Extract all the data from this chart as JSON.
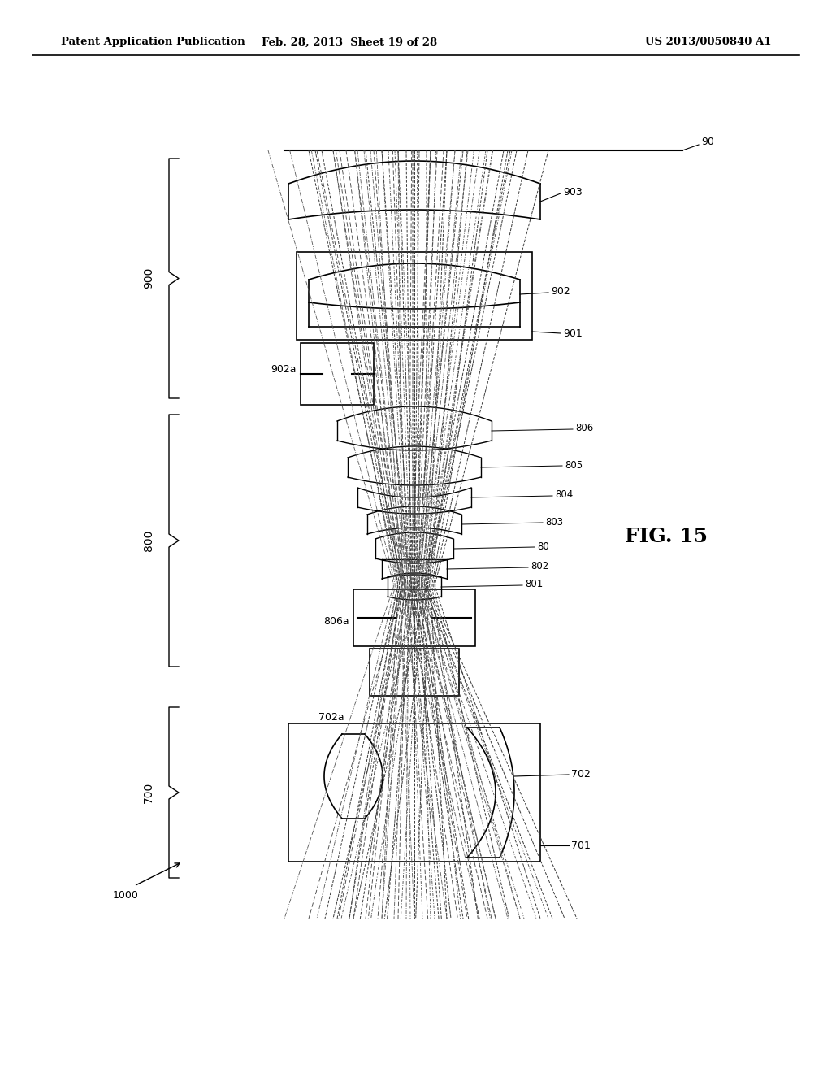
{
  "header_left": "Patent Application Publication",
  "header_mid": "Feb. 28, 2013  Sheet 19 of 28",
  "header_right": "US 2013/0050840 A1",
  "fig_label": "FIG. 15",
  "bg_color": "#ffffff",
  "line_color": "#000000"
}
